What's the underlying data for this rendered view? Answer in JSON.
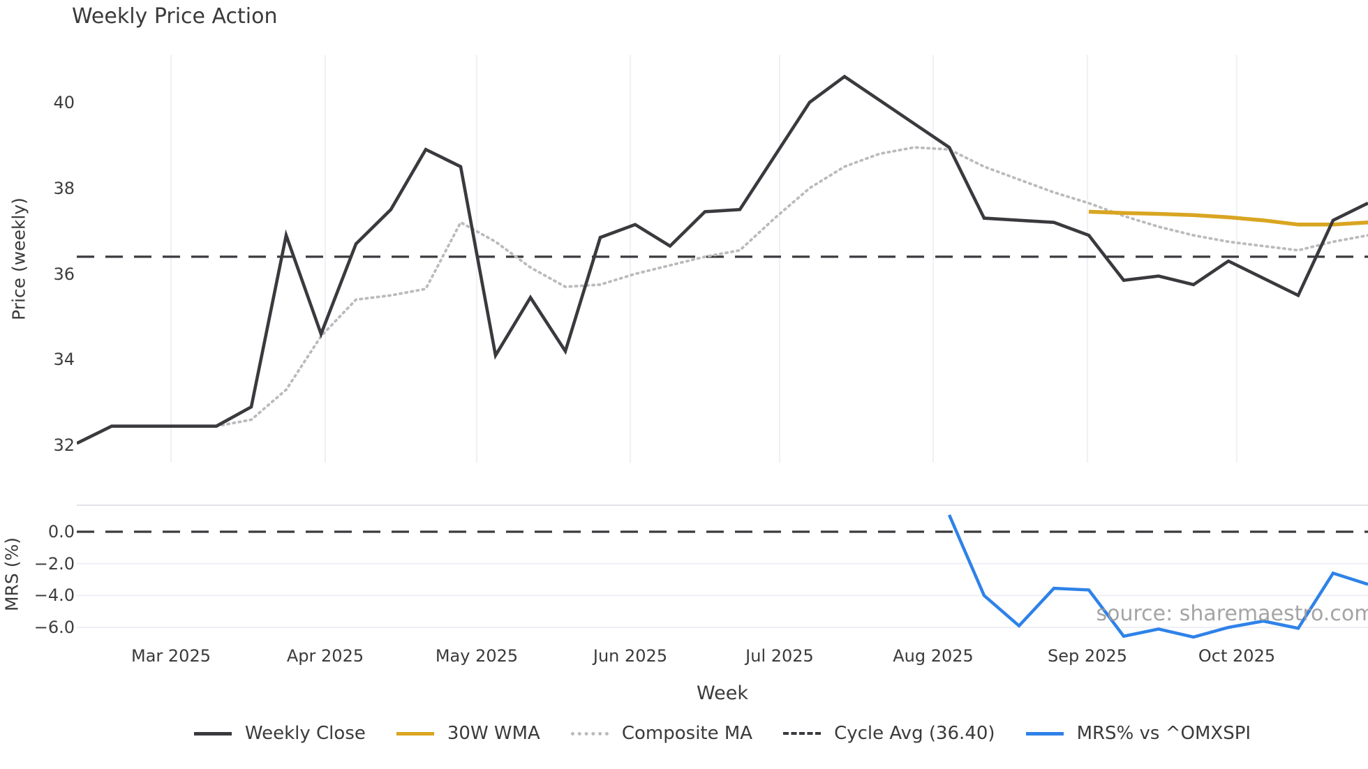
{
  "title": "Weekly Price Action",
  "source": "source: sharemaestro.com",
  "price_axis": {
    "label": "Price (weekly)",
    "tick_labels": [
      "40",
      "38",
      "36",
      "34",
      "32"
    ]
  },
  "mrs_axis": {
    "label": "MRS (%)",
    "tick_labels": [
      "0.0",
      "−2.0",
      "−4.0",
      "−6.0"
    ]
  },
  "x_axis": {
    "label": "Week"
  },
  "colors": {
    "weekly_close": "#3A3A3E",
    "wma_30w": "#D9A521",
    "composite_ma": "#BBBBBB",
    "cycle_avg": "#3A3A3E",
    "mrs": "#2E82E8",
    "gridline": "#ECECF4",
    "text": "#3A3A3A"
  },
  "legend": [
    {
      "label": "Weekly Close",
      "color": "#3A3A3E",
      "style": "solid"
    },
    {
      "label": "30W WMA",
      "color": "#D9A521",
      "style": "solid"
    },
    {
      "label": "Composite MA",
      "color": "#BBBBBB",
      "style": "dotted"
    },
    {
      "label": "Cycle Avg (36.40)",
      "color": "#3A3A3E",
      "style": "dashed"
    },
    {
      "label": "MRS% vs ^OMXSPI",
      "color": "#2E82E8",
      "style": "solid"
    }
  ],
  "chart_data": {
    "type": "line",
    "x_unit": "week",
    "n_points": 38,
    "x_months": [
      {
        "label": "Mar 2025",
        "week": 2.7
      },
      {
        "label": "Apr 2025",
        "week": 7.12
      },
      {
        "label": "May 2025",
        "week": 11.46
      },
      {
        "label": "Jun 2025",
        "week": 15.86
      },
      {
        "label": "Jul 2025",
        "week": 20.14
      },
      {
        "label": "Aug 2025",
        "week": 24.54
      },
      {
        "label": "Sep 2025",
        "week": 28.96
      },
      {
        "label": "Oct 2025",
        "week": 33.24
      }
    ],
    "price_panel": {
      "ylabel": "Price (weekly)",
      "ylim": [
        31.6,
        41.1
      ],
      "yticks": [
        40,
        38,
        36,
        34,
        32
      ],
      "grid": "vertical-months",
      "cycle_avg": 36.4,
      "weekly_close": [
        32.05,
        32.45,
        32.45,
        32.45,
        32.45,
        32.9,
        36.9,
        34.6,
        36.7,
        37.5,
        38.9,
        38.5,
        34.1,
        35.45,
        34.2,
        36.85,
        37.15,
        36.65,
        37.45,
        37.5,
        38.75,
        40.0,
        40.6,
        40.05,
        39.5,
        38.95,
        37.3,
        37.25,
        37.2,
        36.9,
        35.85,
        35.95,
        35.75,
        36.3,
        35.9,
        35.5,
        37.25,
        37.65
      ],
      "composite_ma": {
        "start_week": 4,
        "values": [
          32.45,
          32.6,
          33.3,
          34.55,
          35.4,
          35.5,
          35.65,
          37.2,
          36.75,
          36.15,
          35.7,
          35.75,
          36.0,
          36.2,
          36.4,
          36.55,
          37.3,
          38.0,
          38.5,
          38.8,
          38.95,
          38.9,
          38.5,
          38.2,
          37.9,
          37.65,
          37.35,
          37.1,
          36.9,
          36.75,
          36.65,
          36.55,
          36.75,
          36.9
        ]
      },
      "wma_30w": {
        "start_week": 29,
        "values": [
          37.45,
          37.42,
          37.4,
          37.37,
          37.32,
          37.25,
          37.15,
          37.15,
          37.2
        ]
      }
    },
    "mrs_panel": {
      "ylabel": "MRS (%)",
      "ylim": [
        -7.35,
        1.66
      ],
      "yticks": [
        0,
        -2,
        -4,
        -6
      ],
      "zero_line": 0,
      "mrs_pct": {
        "start_week": 25,
        "values": [
          1.05,
          -4.0,
          -5.9,
          -3.55,
          -3.65,
          -6.55,
          -6.1,
          -6.6,
          -6.0,
          -5.6,
          -6.05,
          -2.6,
          -3.3
        ]
      }
    }
  }
}
